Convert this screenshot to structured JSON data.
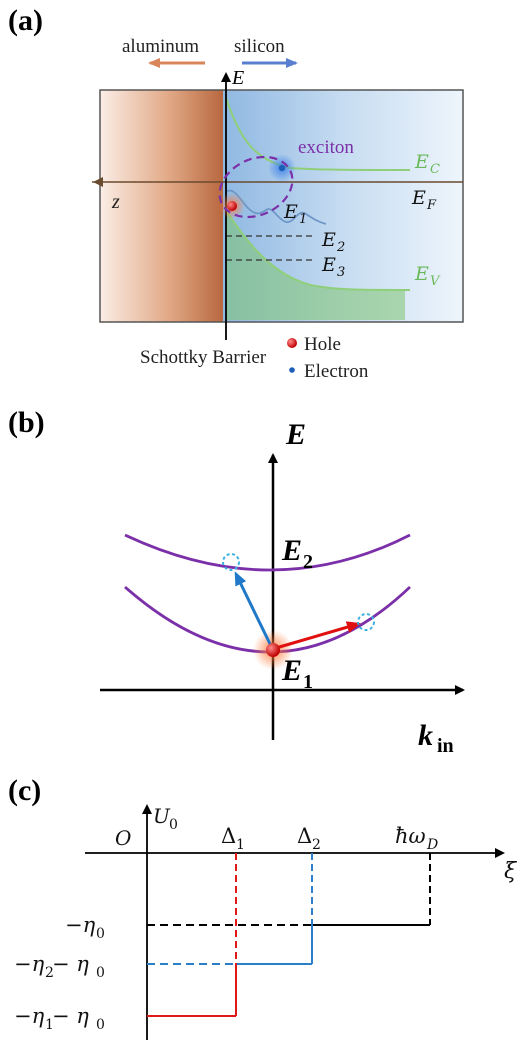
{
  "panel_a": {
    "label": "(a)",
    "aluminum": "aluminum",
    "silicon": "silicon",
    "axis_e": "E",
    "axis_z": "z",
    "exciton": "exciton",
    "ec": "E",
    "ec_sub": "C",
    "ef": "E",
    "ef_sub": "F",
    "ev": "E",
    "ev_sub": "V",
    "e1": "E",
    "e1_sub": "1",
    "e2": "E",
    "e2_sub": "2",
    "e3": "E",
    "e3_sub": "3",
    "schottky": "Schottky Barrier",
    "legend_hole": "Hole",
    "legend_electron": "Electron",
    "colors": {
      "aluminum": "#c47a52",
      "silicon": "#9fc3e8",
      "band": "#8fcf7a",
      "exciton": "#7b2fa8"
    }
  },
  "panel_b": {
    "label": "(b)",
    "axis_e": "E",
    "axis_k": "k",
    "axis_k_sub": "in",
    "e1": "E",
    "e1_sub": "1",
    "e2": "E",
    "e2_sub": "2",
    "colors": {
      "parabola": "#7b2fa8",
      "arrow_blue": "#1f78c8",
      "arrow_red": "#e01010",
      "target": "#3ab0e0"
    }
  },
  "panel_c": {
    "label": "(c)",
    "y_label": "U",
    "y_label_sub": "0",
    "origin": "O",
    "x_label": "ξ",
    "d1": "Δ",
    "d1_sub": "1",
    "d2": "Δ",
    "d2_sub": "2",
    "wd": "ħω",
    "wd_sub": "D",
    "eta0": "−η",
    "eta0_sub": "0",
    "eta2_a": "−η",
    "eta2_a_sub": "2",
    "eta2_b": " − η",
    "eta2_b_sub": "0",
    "eta1_a": "−η",
    "eta1_a_sub": "1",
    "eta1_b": " − η",
    "eta1_b_sub": "0",
    "colors": {
      "black": "#000000",
      "blue": "#2a7fc8",
      "red": "#e01818"
    }
  }
}
